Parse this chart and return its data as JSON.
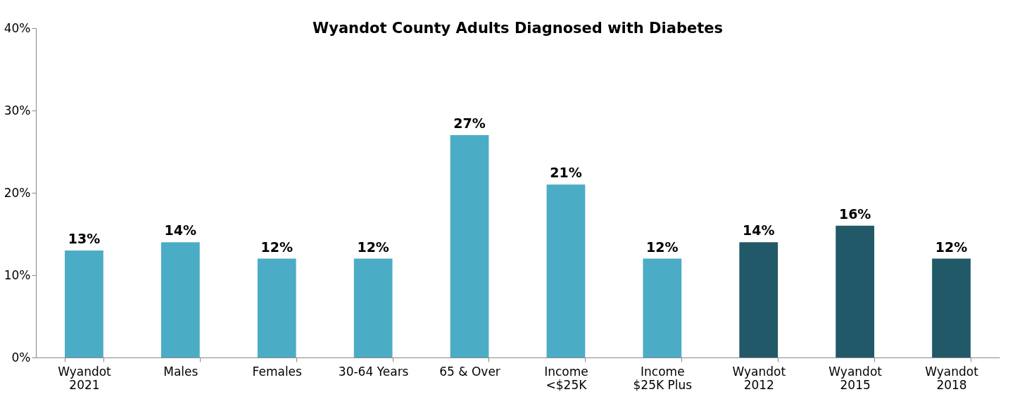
{
  "chart_data": {
    "type": "bar",
    "title": "Wyandot County Adults Diagnosed with Diabetes",
    "categories": [
      "Wyandot\n2021",
      "Males",
      "Females",
      "30-64 Years",
      "65 & Over",
      "Income\n<$25K",
      "Income\n$25K Plus",
      "Wyandot\n2012",
      "Wyandot\n2015",
      "Wyandot\n2018"
    ],
    "values": [
      13,
      14,
      12,
      12,
      27,
      21,
      12,
      14,
      16,
      12
    ],
    "colors": [
      "#4bacc6",
      "#4bacc6",
      "#4bacc6",
      "#4bacc6",
      "#4bacc6",
      "#4bacc6",
      "#4bacc6",
      "#215968",
      "#215968",
      "#215968"
    ],
    "value_labels": [
      "13%",
      "14%",
      "12%",
      "12%",
      "27%",
      "21%",
      "12%",
      "14%",
      "16%",
      "12%"
    ],
    "ylim": [
      0,
      40
    ],
    "yticks": [
      {
        "value": 0,
        "label": "0%"
      },
      {
        "value": 10,
        "label": "10%"
      },
      {
        "value": 20,
        "label": "20%"
      },
      {
        "value": 30,
        "label": "30%"
      },
      {
        "value": 40,
        "label": "40%"
      }
    ],
    "grid": false,
    "legend": false
  }
}
